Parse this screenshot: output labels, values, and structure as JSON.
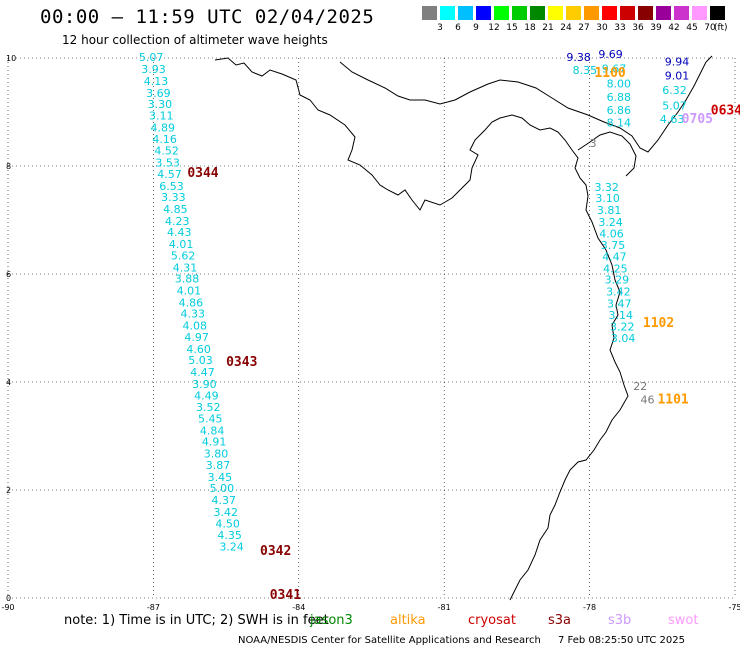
{
  "header": {
    "title": "00:00 – 11:59 UTC 02/04/2025",
    "subtitle": "12 hour collection of altimeter wave heights"
  },
  "colorbar": {
    "unit": "(ft)",
    "colors": [
      "#808080",
      "#00ffff",
      "#00bfff",
      "#0000ff",
      "#00ff00",
      "#00cc00",
      "#008800",
      "#ffff00",
      "#ffcc00",
      "#ff9900",
      "#ff0000",
      "#cc0000",
      "#880000",
      "#990099",
      "#cc33cc",
      "#ff99ff",
      "#000000"
    ],
    "labels": [
      "3",
      "6",
      "9",
      "12",
      "15",
      "18",
      "21",
      "24",
      "27",
      "30",
      "33",
      "36",
      "39",
      "42",
      "45",
      "70"
    ]
  },
  "map": {
    "xlim": [
      -90,
      -75
    ],
    "ylim": [
      0,
      10
    ],
    "x_ticks": [
      "-90",
      "-87",
      "-84",
      "-81",
      "-78",
      "-75"
    ],
    "y_ticks": [
      "0",
      "2",
      "4",
      "6",
      "8",
      "10"
    ],
    "grid": "dotted"
  },
  "passes": [
    {
      "label": "0344",
      "color": "#880000",
      "lon": -86.3,
      "lat": 7.8
    },
    {
      "label": "0343",
      "color": "#880000",
      "lon": -85.5,
      "lat": 4.3
    },
    {
      "label": "0342",
      "color": "#880000",
      "lon": -84.8,
      "lat": 0.8
    },
    {
      "label": "0341",
      "color": "#880000",
      "lon": -84.6,
      "lat": -0.02
    },
    {
      "label": "1100",
      "color": "#ff9900",
      "lon": -77.9,
      "lat": 9.65
    },
    {
      "label": "1102",
      "color": "#ff9900",
      "lon": -76.9,
      "lat": 5.02
    },
    {
      "label": "1101",
      "color": "#ff9900",
      "lon": -76.6,
      "lat": 3.6
    },
    {
      "label": "0634",
      "color": "#cc0000",
      "lon": -75.5,
      "lat": 8.95
    },
    {
      "label": "0705",
      "color": "#cc99ff",
      "lon": -76.1,
      "lat": 8.8
    }
  ],
  "tracks": [
    {
      "name": "west-track",
      "color": "#00ccdd",
      "points": [
        {
          "lon": -87.3,
          "lat": 9.94,
          "v": "5.07"
        },
        {
          "lon": -87.25,
          "lat": 9.72,
          "v": "3.93"
        },
        {
          "lon": -87.2,
          "lat": 9.5,
          "v": "4.13"
        },
        {
          "lon": -87.15,
          "lat": 9.28,
          "v": "3.69"
        },
        {
          "lon": -87.12,
          "lat": 9.07,
          "v": "3.30"
        },
        {
          "lon": -87.09,
          "lat": 8.86,
          "v": "3.11"
        },
        {
          "lon": -87.06,
          "lat": 8.64,
          "v": "4.89"
        },
        {
          "lon": -87.02,
          "lat": 8.43,
          "v": "4.16"
        },
        {
          "lon": -86.98,
          "lat": 8.21,
          "v": "4.52"
        },
        {
          "lon": -86.96,
          "lat": 7.99,
          "v": "3.53"
        },
        {
          "lon": -86.92,
          "lat": 7.78,
          "v": "4.57"
        },
        {
          "lon": -86.88,
          "lat": 7.56,
          "v": "6.53"
        },
        {
          "lon": -86.84,
          "lat": 7.35,
          "v": "3.33"
        },
        {
          "lon": -86.8,
          "lat": 7.13,
          "v": "4.85"
        },
        {
          "lon": -86.76,
          "lat": 6.91,
          "v": "4.23"
        },
        {
          "lon": -86.72,
          "lat": 6.7,
          "v": "4.43"
        },
        {
          "lon": -86.68,
          "lat": 6.48,
          "v": "4.01"
        },
        {
          "lon": -86.64,
          "lat": 6.27,
          "v": "5.62"
        },
        {
          "lon": -86.6,
          "lat": 6.05,
          "v": "4.31"
        },
        {
          "lon": -86.56,
          "lat": 5.84,
          "v": "3.88"
        },
        {
          "lon": -86.52,
          "lat": 5.62,
          "v": "4.01"
        },
        {
          "lon": -86.48,
          "lat": 5.4,
          "v": "4.86"
        },
        {
          "lon": -86.44,
          "lat": 5.19,
          "v": "4.33"
        },
        {
          "lon": -86.4,
          "lat": 4.97,
          "v": "4.08"
        },
        {
          "lon": -86.36,
          "lat": 4.76,
          "v": "4.97"
        },
        {
          "lon": -86.32,
          "lat": 4.54,
          "v": "4.60"
        },
        {
          "lon": -86.28,
          "lat": 4.33,
          "v": "5.03"
        },
        {
          "lon": -86.24,
          "lat": 4.11,
          "v": "4.47"
        },
        {
          "lon": -86.2,
          "lat": 3.89,
          "v": "3.90"
        },
        {
          "lon": -86.16,
          "lat": 3.68,
          "v": "4.49"
        },
        {
          "lon": -86.12,
          "lat": 3.46,
          "v": "3.52"
        },
        {
          "lon": -86.08,
          "lat": 3.25,
          "v": "5.45"
        },
        {
          "lon": -86.04,
          "lat": 3.03,
          "v": "4.84"
        },
        {
          "lon": -86.0,
          "lat": 2.82,
          "v": "4.91"
        },
        {
          "lon": -85.96,
          "lat": 2.6,
          "v": "3.80"
        },
        {
          "lon": -85.92,
          "lat": 2.39,
          "v": "3.87"
        },
        {
          "lon": -85.88,
          "lat": 2.17,
          "v": "3.45"
        },
        {
          "lon": -85.84,
          "lat": 1.96,
          "v": "5.00"
        },
        {
          "lon": -85.8,
          "lat": 1.74,
          "v": "4.37"
        },
        {
          "lon": -85.76,
          "lat": 1.52,
          "v": "3.42"
        },
        {
          "lon": -85.72,
          "lat": 1.31,
          "v": "4.50"
        },
        {
          "lon": -85.68,
          "lat": 1.09,
          "v": "4.35"
        },
        {
          "lon": -85.64,
          "lat": 0.88,
          "v": "3.24"
        }
      ]
    },
    {
      "name": "east-track",
      "color": "#00ccdd",
      "points": [
        {
          "lon": -77.9,
          "lat": 7.54,
          "v": "3.32"
        },
        {
          "lon": -77.88,
          "lat": 7.33,
          "v": "3.10"
        },
        {
          "lon": -77.85,
          "lat": 7.11,
          "v": "3.81"
        },
        {
          "lon": -77.82,
          "lat": 6.89,
          "v": "3.24"
        },
        {
          "lon": -77.8,
          "lat": 6.68,
          "v": "4.06"
        },
        {
          "lon": -77.77,
          "lat": 6.46,
          "v": "3.75"
        },
        {
          "lon": -77.74,
          "lat": 6.25,
          "v": "4.47"
        },
        {
          "lon": -77.72,
          "lat": 6.03,
          "v": "4.25"
        },
        {
          "lon": -77.69,
          "lat": 5.82,
          "v": "3.29"
        },
        {
          "lon": -77.66,
          "lat": 5.6,
          "v": "3.42"
        },
        {
          "lon": -77.64,
          "lat": 5.38,
          "v": "3.47"
        },
        {
          "lon": -77.61,
          "lat": 5.17,
          "v": "3.14"
        },
        {
          "lon": -77.58,
          "lat": 4.95,
          "v": "3.22"
        },
        {
          "lon": -77.56,
          "lat": 4.74,
          "v": "3.04"
        }
      ]
    },
    {
      "name": "north-east-cyan",
      "color": "#00ccdd",
      "points": [
        {
          "lon": -77.65,
          "lat": 9.45,
          "v": "8.00"
        },
        {
          "lon": -77.65,
          "lat": 9.2,
          "v": "6.88"
        },
        {
          "lon": -77.65,
          "lat": 8.96,
          "v": "6.86"
        },
        {
          "lon": -77.65,
          "lat": 8.73,
          "v": "8.14"
        },
        {
          "lon": -78.35,
          "lat": 9.7,
          "v": "8.35"
        },
        {
          "lon": -77.75,
          "lat": 9.73,
          "v": "9.67"
        },
        {
          "lon": -76.5,
          "lat": 9.33,
          "v": "6.32"
        },
        {
          "lon": -76.5,
          "lat": 9.05,
          "v": "5.07"
        },
        {
          "lon": -76.55,
          "lat": 8.8,
          "v": "4.63"
        }
      ]
    },
    {
      "name": "north-east-blue",
      "color": "#0000bb",
      "points": [
        {
          "lon": -78.48,
          "lat": 9.94,
          "v": "9.38"
        },
        {
          "lon": -77.82,
          "lat": 10.0,
          "v": "9.69"
        },
        {
          "lon": -76.45,
          "lat": 9.86,
          "v": "9.94"
        },
        {
          "lon": -76.45,
          "lat": 9.6,
          "v": "9.01"
        }
      ]
    },
    {
      "name": "grey-points",
      "color": "#777777",
      "points": [
        {
          "lon": -78.0,
          "lat": 8.35,
          "v": "3"
        },
        {
          "lon": -77.1,
          "lat": 3.85,
          "v": "22"
        },
        {
          "lon": -76.95,
          "lat": 3.6,
          "v": "46"
        }
      ]
    }
  ],
  "note": "note:  1) Time is in UTC;  2) SWH is in feet",
  "legend": [
    {
      "label": "jason3",
      "color": "#008800"
    },
    {
      "label": "altika",
      "color": "#ff9900"
    },
    {
      "label": "cryosat",
      "color": "#cc0000"
    },
    {
      "label": "s3a",
      "color": "#880000"
    },
    {
      "label": "s3b",
      "color": "#cc99ff"
    },
    {
      "label": "swot",
      "color": "#ff99ff"
    }
  ],
  "footer": {
    "credit": "NOAA/NESDIS Center for Satellite Applications and Research",
    "timestamp": "7 Feb 08:25:50 UTC 2025"
  }
}
